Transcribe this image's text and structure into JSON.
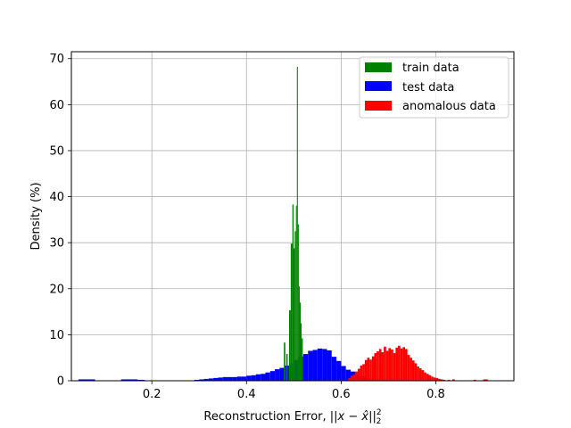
{
  "chart_data": {
    "type": "histogram",
    "xlabel": "Reconstruction Error, ",
    "xlabel_math": "||x − x̂||",
    "xlabel_sup": "2",
    "xlabel_sub": "2",
    "ylabel": "Density (%)",
    "xlim": [
      0.03,
      0.965
    ],
    "ylim": [
      0,
      71.5
    ],
    "xticks": [
      {
        "value": 0.2,
        "label": "0.2"
      },
      {
        "value": 0.4,
        "label": "0.4"
      },
      {
        "value": 0.6,
        "label": "0.6"
      },
      {
        "value": 0.8,
        "label": "0.8"
      }
    ],
    "yticks": [
      {
        "value": 0,
        "label": "0"
      },
      {
        "value": 10,
        "label": "10"
      },
      {
        "value": 20,
        "label": "20"
      },
      {
        "value": 30,
        "label": "30"
      },
      {
        "value": 40,
        "label": "40"
      },
      {
        "value": 50,
        "label": "50"
      },
      {
        "value": 60,
        "label": "60"
      },
      {
        "value": 70,
        "label": "70"
      }
    ],
    "grid": true,
    "legend_position": "upper right",
    "series": [
      {
        "name": "test data",
        "color": "#0000ff",
        "bins": [
          [
            0.045,
            0.08,
            0.3
          ],
          [
            0.135,
            0.17,
            0.3
          ],
          [
            0.17,
            0.185,
            0.2
          ],
          [
            0.29,
            0.3,
            0.2
          ],
          [
            0.3,
            0.31,
            0.3
          ],
          [
            0.31,
            0.32,
            0.4
          ],
          [
            0.32,
            0.33,
            0.5
          ],
          [
            0.33,
            0.34,
            0.6
          ],
          [
            0.34,
            0.35,
            0.7
          ],
          [
            0.35,
            0.36,
            0.8
          ],
          [
            0.36,
            0.37,
            0.8
          ],
          [
            0.37,
            0.38,
            0.8
          ],
          [
            0.38,
            0.39,
            0.9
          ],
          [
            0.39,
            0.4,
            0.9
          ],
          [
            0.4,
            0.41,
            1.1
          ],
          [
            0.41,
            0.42,
            1.2
          ],
          [
            0.42,
            0.43,
            1.4
          ],
          [
            0.43,
            0.44,
            1.5
          ],
          [
            0.44,
            0.45,
            1.8
          ],
          [
            0.45,
            0.46,
            2.1
          ],
          [
            0.46,
            0.47,
            2.5
          ],
          [
            0.47,
            0.48,
            2.8
          ],
          [
            0.48,
            0.49,
            3.3
          ],
          [
            0.49,
            0.5,
            3.8
          ],
          [
            0.5,
            0.51,
            4.5
          ],
          [
            0.51,
            0.52,
            5.3
          ],
          [
            0.52,
            0.53,
            5.8
          ],
          [
            0.53,
            0.54,
            6.5
          ],
          [
            0.54,
            0.55,
            6.7
          ],
          [
            0.55,
            0.56,
            7.0
          ],
          [
            0.56,
            0.57,
            6.9
          ],
          [
            0.57,
            0.58,
            6.6
          ],
          [
            0.58,
            0.59,
            5.2
          ],
          [
            0.59,
            0.6,
            4.3
          ],
          [
            0.6,
            0.61,
            3.2
          ],
          [
            0.61,
            0.62,
            2.4
          ],
          [
            0.62,
            0.63,
            2.0
          ],
          [
            0.63,
            0.64,
            1.5
          ],
          [
            0.64,
            0.65,
            1.0
          ],
          [
            0.65,
            0.66,
            0.6
          ],
          [
            0.66,
            0.67,
            0.3
          ]
        ]
      },
      {
        "name": "anomalous data",
        "color": "#ff0000",
        "bins": [
          [
            0.615,
            0.62,
            0.6
          ],
          [
            0.62,
            0.625,
            1.1
          ],
          [
            0.625,
            0.63,
            1.3
          ],
          [
            0.63,
            0.635,
            2.0
          ],
          [
            0.635,
            0.64,
            2.6
          ],
          [
            0.64,
            0.645,
            3.3
          ],
          [
            0.645,
            0.65,
            3.6
          ],
          [
            0.65,
            0.655,
            4.5
          ],
          [
            0.655,
            0.66,
            5.0
          ],
          [
            0.66,
            0.665,
            4.6
          ],
          [
            0.665,
            0.67,
            5.3
          ],
          [
            0.67,
            0.675,
            6.0
          ],
          [
            0.675,
            0.68,
            6.4
          ],
          [
            0.68,
            0.685,
            6.9
          ],
          [
            0.685,
            0.69,
            6.2
          ],
          [
            0.69,
            0.695,
            7.4
          ],
          [
            0.695,
            0.7,
            6.5
          ],
          [
            0.7,
            0.705,
            7.1
          ],
          [
            0.705,
            0.71,
            6.8
          ],
          [
            0.71,
            0.715,
            6.0
          ],
          [
            0.715,
            0.72,
            7.2
          ],
          [
            0.72,
            0.725,
            7.6
          ],
          [
            0.725,
            0.73,
            7.0
          ],
          [
            0.73,
            0.735,
            7.3
          ],
          [
            0.735,
            0.74,
            6.9
          ],
          [
            0.74,
            0.745,
            5.6
          ],
          [
            0.745,
            0.75,
            5.0
          ],
          [
            0.75,
            0.755,
            4.4
          ],
          [
            0.755,
            0.76,
            3.8
          ],
          [
            0.76,
            0.765,
            3.1
          ],
          [
            0.765,
            0.77,
            2.7
          ],
          [
            0.77,
            0.775,
            2.3
          ],
          [
            0.775,
            0.78,
            1.8
          ],
          [
            0.78,
            0.785,
            1.5
          ],
          [
            0.785,
            0.79,
            1.2
          ],
          [
            0.79,
            0.795,
            0.9
          ],
          [
            0.795,
            0.8,
            0.7
          ],
          [
            0.8,
            0.805,
            0.6
          ],
          [
            0.805,
            0.81,
            0.4
          ],
          [
            0.81,
            0.815,
            0.3
          ],
          [
            0.815,
            0.82,
            0.2
          ],
          [
            0.825,
            0.83,
            0.2
          ],
          [
            0.835,
            0.84,
            0.3
          ],
          [
            0.845,
            0.85,
            0.1
          ],
          [
            0.88,
            0.885,
            0.2
          ],
          [
            0.9,
            0.91,
            0.3
          ]
        ]
      },
      {
        "name": "train data",
        "color": "#008000",
        "bins": [
          [
            0.479,
            0.482,
            8.3
          ],
          [
            0.484,
            0.487,
            5.8
          ],
          [
            0.49,
            0.4935,
            15.3
          ],
          [
            0.4935,
            0.497,
            29.8
          ],
          [
            0.497,
            0.4995,
            38.3
          ],
          [
            0.4995,
            0.502,
            28.8
          ],
          [
            0.502,
            0.5045,
            32.5
          ],
          [
            0.5045,
            0.5065,
            38.0
          ],
          [
            0.5065,
            0.5085,
            68.2
          ],
          [
            0.5085,
            0.5105,
            34.0
          ],
          [
            0.5105,
            0.5125,
            20.5
          ],
          [
            0.5125,
            0.5145,
            17.0
          ],
          [
            0.5145,
            0.5165,
            12.5
          ],
          [
            0.5165,
            0.519,
            9.2
          ]
        ]
      }
    ]
  }
}
